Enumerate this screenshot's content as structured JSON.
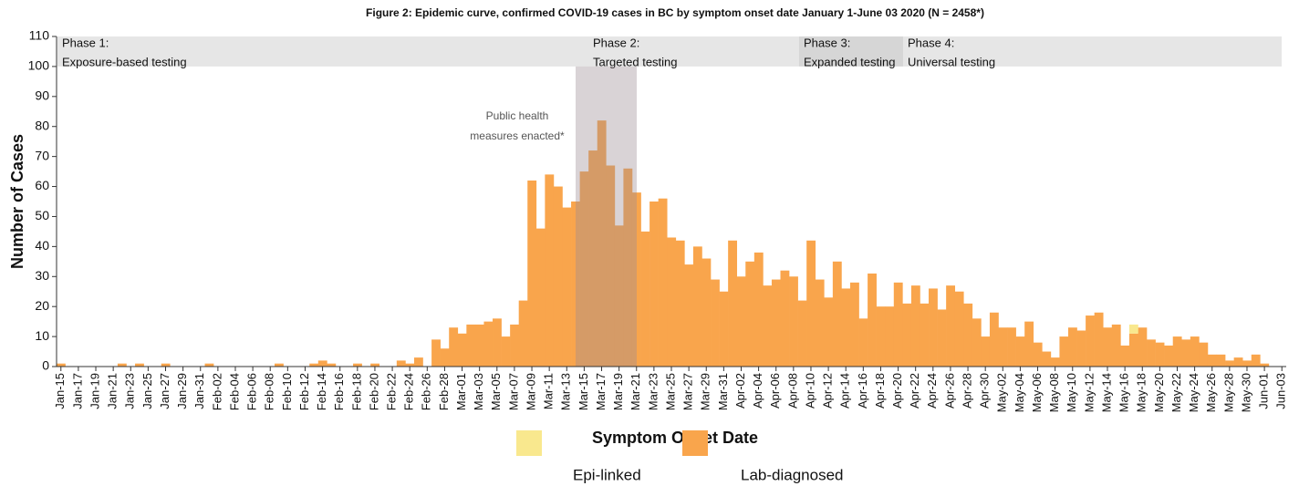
{
  "chart_data": {
    "type": "bar",
    "stacked": true,
    "title": "Figure 2: Epidemic curve, confirmed COVID-19 cases in BC by symptom onset date January 1-June 03 2020 (N = 2458*)",
    "x_label": "Symptom Onset Date",
    "y_label": "Number of Cases",
    "annotation": [
      "Public health",
      "measures enacted*"
    ],
    "phases": [
      {
        "title": "Phase 1:",
        "label": "Exposure-based testing"
      },
      {
        "title": "Phase 2:",
        "label": "Targeted testing"
      },
      {
        "title": "Phase 3:",
        "label": "Expanded testing"
      },
      {
        "title": "Phase 4:",
        "label": "Universal testing"
      }
    ],
    "ylim": [
      0,
      110
    ],
    "yticks": [
      0,
      10,
      20,
      30,
      40,
      50,
      60,
      70,
      80,
      90,
      100,
      110
    ],
    "categories": [
      "Jan-15",
      null,
      "Jan-17",
      null,
      "Jan-19",
      null,
      "Jan-21",
      null,
      "Jan-23",
      null,
      "Jan-25",
      null,
      "Jan-27",
      null,
      "Jan-29",
      null,
      "Jan-31",
      null,
      "Feb-02",
      null,
      "Feb-04",
      null,
      "Feb-06",
      null,
      "Feb-08",
      null,
      "Feb-10",
      null,
      "Feb-12",
      null,
      "Feb-14",
      null,
      "Feb-16",
      null,
      "Feb-18",
      null,
      "Feb-20",
      null,
      "Feb-22",
      null,
      "Feb-24",
      null,
      "Feb-26",
      null,
      "Feb-28",
      null,
      "Mar-01",
      null,
      "Mar-03",
      null,
      "Mar-05",
      null,
      "Mar-07",
      null,
      "Mar-09",
      null,
      "Mar-11",
      null,
      "Mar-13",
      null,
      "Mar-15",
      null,
      "Mar-17",
      null,
      "Mar-19",
      null,
      "Mar-21",
      null,
      "Mar-23",
      null,
      "Mar-25",
      null,
      "Mar-27",
      null,
      "Mar-29",
      null,
      "Mar-31",
      null,
      "Apr-02",
      null,
      "Apr-04",
      null,
      "Apr-06",
      null,
      "Apr-08",
      null,
      "Apr-10",
      null,
      "Apr-12",
      null,
      "Apr-14",
      null,
      "Apr-16",
      null,
      "Apr-18",
      null,
      "Apr-20",
      null,
      "Apr-22",
      null,
      "Apr-24",
      null,
      "Apr-26",
      null,
      "Apr-28",
      null,
      "Apr-30",
      null,
      "May-02",
      null,
      "May-04",
      null,
      "May-06",
      null,
      "May-08",
      null,
      "May-10",
      null,
      "May-12",
      null,
      "May-14",
      null,
      "May-16",
      null,
      "May-18",
      null,
      "May-20",
      null,
      "May-22",
      null,
      "May-24",
      null,
      "May-26",
      null,
      "May-28",
      null,
      "May-30",
      null,
      "Jun-01",
      null,
      "Jun-03"
    ],
    "series": [
      {
        "name": "Lab-diagnosed",
        "color": "#f9a54c",
        "values": [
          1,
          0,
          0,
          0,
          0,
          0,
          0,
          1,
          0,
          1,
          0,
          0,
          1,
          0,
          0,
          0,
          0,
          1,
          0,
          0,
          0,
          0,
          0,
          0,
          0,
          1,
          0,
          0,
          0,
          1,
          2,
          1,
          0,
          0,
          1,
          0,
          1,
          0,
          0,
          2,
          1,
          3,
          0,
          9,
          6,
          13,
          11,
          14,
          14,
          15,
          16,
          10,
          14,
          22,
          62,
          46,
          64,
          60,
          53,
          55,
          65,
          72,
          82,
          67,
          47,
          66,
          58,
          45,
          55,
          56,
          43,
          42,
          34,
          40,
          36,
          29,
          25,
          42,
          30,
          35,
          38,
          27,
          29,
          32,
          30,
          22,
          42,
          29,
          23,
          35,
          26,
          28,
          16,
          31,
          20,
          20,
          28,
          21,
          27,
          21,
          26,
          19,
          27,
          25,
          21,
          16,
          10,
          18,
          13,
          13,
          10,
          15,
          8,
          5,
          3,
          10,
          13,
          12,
          17,
          18,
          13,
          14,
          7,
          11,
          13,
          9,
          8,
          7,
          10,
          9,
          10,
          8,
          4,
          4,
          2,
          3,
          2,
          4,
          1,
          0,
          0
        ]
      },
      {
        "name": "Epi-linked",
        "color": "#f9e88e",
        "values": [
          0,
          0,
          0,
          0,
          0,
          0,
          0,
          0,
          0,
          0,
          0,
          0,
          0,
          0,
          0,
          0,
          0,
          0,
          0,
          0,
          0,
          0,
          0,
          0,
          0,
          0,
          0,
          0,
          0,
          0,
          0,
          0,
          0,
          0,
          0,
          0,
          0,
          0,
          0,
          0,
          0,
          0,
          0,
          0,
          0,
          0,
          0,
          0,
          0,
          0,
          0,
          0,
          0,
          0,
          0,
          0,
          0,
          0,
          0,
          0,
          0,
          0,
          0,
          0,
          0,
          0,
          0,
          0,
          0,
          0,
          0,
          0,
          0,
          0,
          0,
          0,
          0,
          0,
          0,
          0,
          0,
          0,
          0,
          0,
          0,
          0,
          0,
          0,
          0,
          0,
          0,
          0,
          0,
          0,
          0,
          0,
          0,
          0,
          0,
          0,
          0,
          0,
          0,
          0,
          0,
          0,
          0,
          0,
          0,
          0,
          0,
          0,
          0,
          0,
          0,
          0,
          0,
          0,
          0,
          0,
          0,
          0,
          0,
          3,
          0,
          0,
          0,
          0,
          0,
          0,
          0,
          0,
          0,
          0,
          0,
          0,
          0,
          0,
          0,
          0,
          0
        ]
      }
    ]
  }
}
